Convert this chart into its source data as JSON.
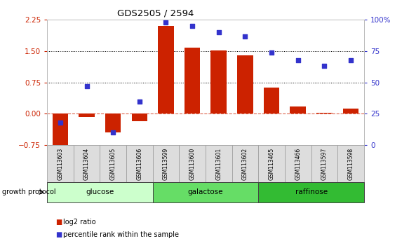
{
  "title": "GDS2505 / 2594",
  "categories": [
    "GSM113603",
    "GSM113604",
    "GSM113605",
    "GSM113606",
    "GSM113599",
    "GSM113600",
    "GSM113601",
    "GSM113602",
    "GSM113465",
    "GSM113466",
    "GSM113597",
    "GSM113598"
  ],
  "log2_ratio": [
    -0.85,
    -0.08,
    -0.45,
    -0.18,
    2.1,
    1.58,
    1.52,
    1.4,
    0.62,
    0.17,
    0.02,
    0.12
  ],
  "percentile_rank": [
    18,
    47,
    10,
    35,
    98,
    95,
    90,
    87,
    74,
    68,
    63,
    68
  ],
  "bar_color": "#cc2200",
  "dot_color": "#3333cc",
  "ylim_left": [
    -0.75,
    2.25
  ],
  "ylim_right": [
    0,
    100
  ],
  "yticks_left": [
    -0.75,
    0,
    0.75,
    1.5,
    2.25
  ],
  "yticks_right": [
    0,
    25,
    50,
    75,
    100
  ],
  "hlines": [
    0.75,
    1.5
  ],
  "zero_line": 0,
  "groups": [
    {
      "label": "glucose",
      "start": 0,
      "end": 4,
      "color": "#ccffcc"
    },
    {
      "label": "galactose",
      "start": 4,
      "end": 8,
      "color": "#66dd66"
    },
    {
      "label": "raffinose",
      "start": 8,
      "end": 12,
      "color": "#33bb33"
    }
  ],
  "group_label": "growth protocol",
  "legend": [
    {
      "label": "log2 ratio",
      "color": "#cc2200"
    },
    {
      "label": "percentile rank within the sample",
      "color": "#3333cc"
    }
  ],
  "background_color": "#ffffff"
}
